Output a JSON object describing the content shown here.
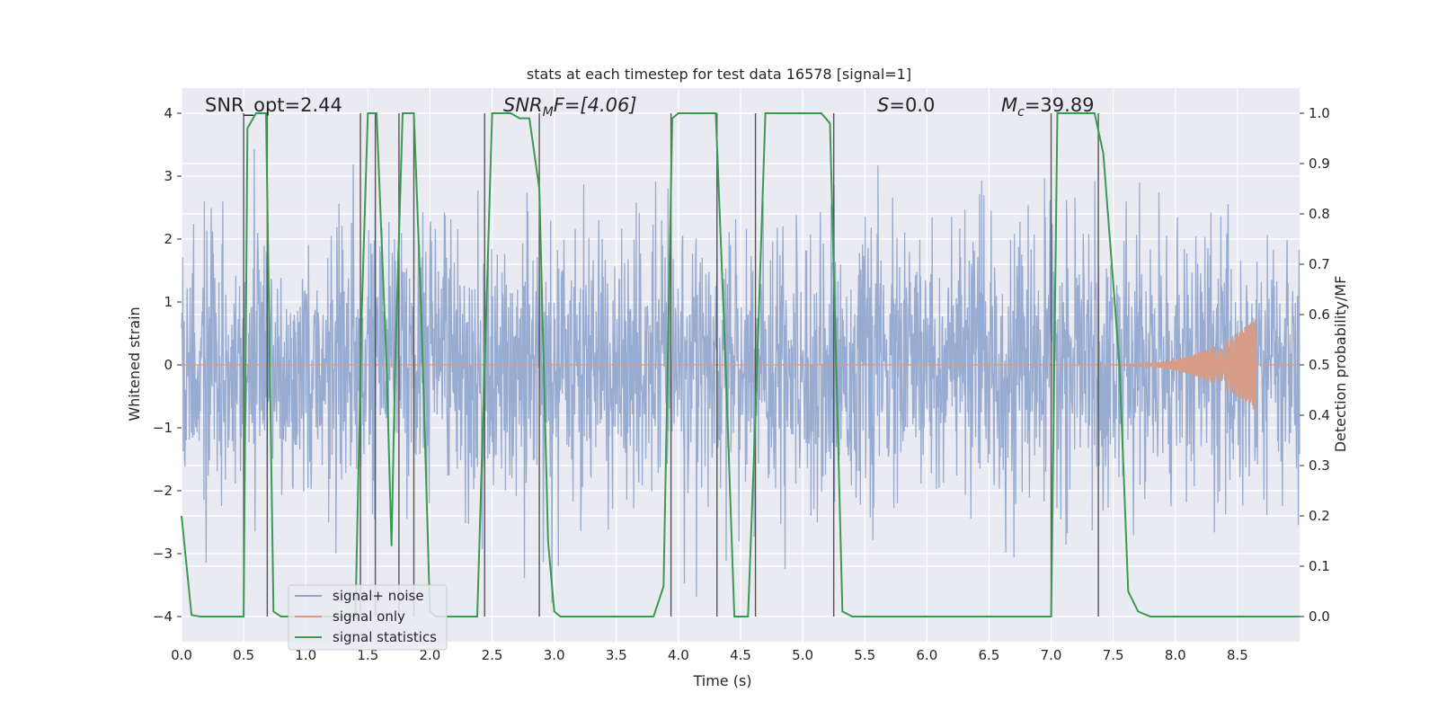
{
  "chart_data": {
    "type": "line",
    "title": "stats at each timestep for test data 16578 [signal=1]",
    "xlabel": "Time (s)",
    "ylabel_left": "Whitened strain",
    "ylabel_right": "Detection probability/MF",
    "xlim": [
      0.0,
      9.0
    ],
    "ylim_left": [
      -4.4,
      4.4
    ],
    "ylim_right": [
      -0.05,
      1.05
    ],
    "x_ticks": [
      "0.0",
      "0.5",
      "1.0",
      "1.5",
      "2.0",
      "2.5",
      "3.0",
      "3.5",
      "4.0",
      "4.5",
      "5.0",
      "5.5",
      "6.0",
      "6.5",
      "7.0",
      "7.5",
      "8.0",
      "8.5"
    ],
    "y_ticks_left": [
      "4",
      "3",
      "2",
      "1",
      "0",
      "−1",
      "−2",
      "−3",
      "−4"
    ],
    "y_ticks_right": [
      "1.0",
      "0.9",
      "0.8",
      "0.7",
      "0.6",
      "0.5",
      "0.4",
      "0.3",
      "0.2",
      "0.1",
      "0.0"
    ],
    "grid": true,
    "legend_position": "lower-left",
    "annotations": {
      "snr_opt": "SNR_opt=2.44",
      "snr_mf_sym": "SNR",
      "snr_mf_sub": "M",
      "snr_mf_rest": "F=[4.06]",
      "s_sym": "S",
      "s_rest": "=0.0",
      "mc_sym": "M",
      "mc_sub": "c",
      "mc_rest": "=39.89"
    },
    "series": [
      {
        "name": "signal+ noise",
        "color": "#8fa4cc",
        "description_note": "noise amplitude envelope approx ±1.7 with spikes to ±4"
      },
      {
        "name": "signal only",
        "color": "#d69c85",
        "chirp_start": 7.3,
        "chirp_peak": 8.65,
        "chirp_peak_amplitude": 0.75
      },
      {
        "name": "signal statistics",
        "color": "#3a9a4f",
        "axis": "right",
        "points": [
          [
            0.0,
            0.2
          ],
          [
            0.08,
            0.003
          ],
          [
            0.15,
            0.0
          ],
          [
            0.5,
            0.0
          ],
          [
            0.53,
            0.97
          ],
          [
            0.6,
            1.0
          ],
          [
            0.68,
            1.0
          ],
          [
            0.74,
            0.01
          ],
          [
            0.8,
            0.0
          ],
          [
            1.4,
            0.0
          ],
          [
            1.45,
            0.6
          ],
          [
            1.5,
            1.0
          ],
          [
            1.57,
            1.0
          ],
          [
            1.65,
            0.5
          ],
          [
            1.69,
            0.14
          ],
          [
            1.72,
            0.5
          ],
          [
            1.78,
            1.0
          ],
          [
            1.87,
            1.0
          ],
          [
            1.93,
            0.6
          ],
          [
            2.0,
            0.01
          ],
          [
            2.05,
            0.0
          ],
          [
            2.38,
            0.0
          ],
          [
            2.5,
            1.0
          ],
          [
            2.65,
            1.0
          ],
          [
            2.72,
            0.99
          ],
          [
            2.8,
            0.99
          ],
          [
            2.88,
            0.85
          ],
          [
            2.95,
            0.15
          ],
          [
            3.0,
            0.01
          ],
          [
            3.05,
            0.0
          ],
          [
            3.8,
            0.0
          ],
          [
            3.88,
            0.06
          ],
          [
            3.95,
            0.99
          ],
          [
            4.0,
            1.0
          ],
          [
            4.3,
            1.0
          ],
          [
            4.38,
            0.5
          ],
          [
            4.45,
            0.0
          ],
          [
            4.56,
            0.0
          ],
          [
            4.62,
            0.4
          ],
          [
            4.7,
            1.0
          ],
          [
            5.15,
            1.0
          ],
          [
            5.22,
            0.98
          ],
          [
            5.27,
            0.5
          ],
          [
            5.32,
            0.01
          ],
          [
            5.4,
            0.0
          ],
          [
            7.0,
            0.0
          ],
          [
            7.05,
            1.0
          ],
          [
            7.35,
            1.0
          ],
          [
            7.42,
            0.92
          ],
          [
            7.55,
            0.5
          ],
          [
            7.62,
            0.05
          ],
          [
            7.7,
            0.01
          ],
          [
            7.8,
            0.0
          ],
          [
            9.0,
            0.0
          ]
        ]
      }
    ],
    "vertical_markers": [
      0.5,
      0.69,
      1.44,
      1.56,
      1.75,
      1.87,
      2.44,
      2.88,
      3.94,
      4.31,
      4.62,
      5.25,
      7.0,
      7.38
    ],
    "marker_color": "#555555"
  }
}
